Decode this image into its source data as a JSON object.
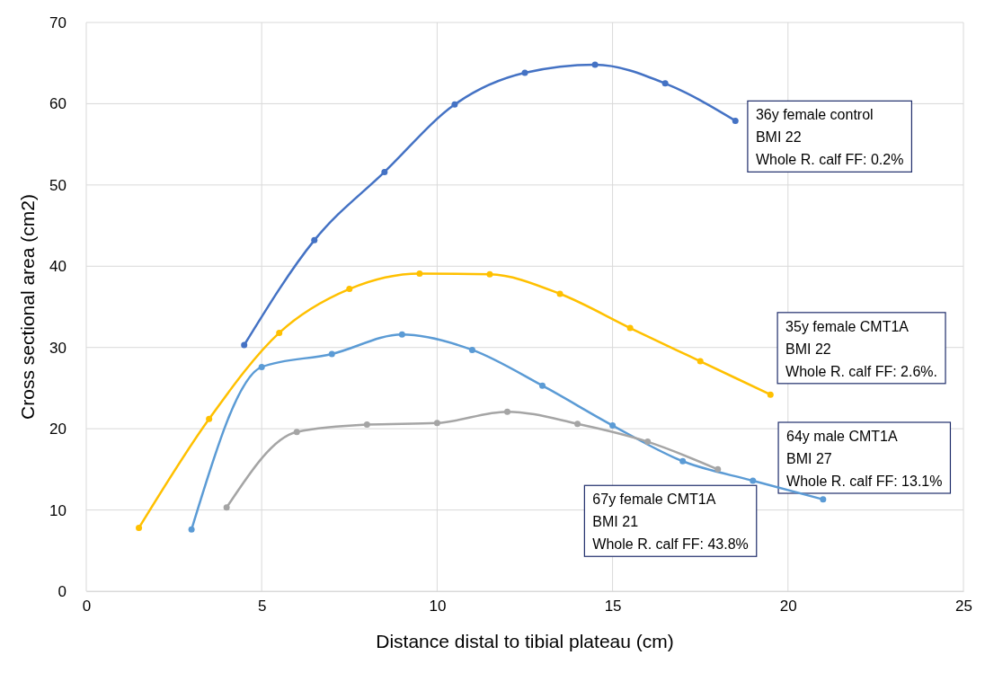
{
  "chart_data": {
    "type": "line",
    "xlabel": "Distance distal to tibial plateau (cm)",
    "ylabel": "Cross sectional area (cm2)",
    "xlim": [
      0,
      25
    ],
    "xticks": [
      0,
      5,
      10,
      15,
      20,
      25
    ],
    "ylim": [
      0,
      70
    ],
    "yticks": [
      0,
      10,
      20,
      30,
      40,
      50,
      60,
      70
    ],
    "grid": true,
    "marker": "circle",
    "series": [
      {
        "color": "#4472c4",
        "x": [
          4.5,
          6.5,
          8.5,
          10.5,
          12.5,
          14.5,
          16.5,
          18.5
        ],
        "values": [
          30.3,
          43.2,
          51.6,
          59.9,
          63.8,
          64.8,
          62.5,
          57.9
        ]
      },
      {
        "color": "#ffc000",
        "x": [
          1.5,
          3.5,
          5.5,
          7.5,
          9.5,
          11.5,
          13.5,
          15.5,
          17.5,
          19.5
        ],
        "values": [
          7.8,
          21.2,
          31.8,
          37.2,
          39.1,
          39.0,
          36.6,
          32.4,
          28.3,
          24.2
        ]
      },
      {
        "color": "#5b9bd5",
        "x": [
          3,
          5,
          7,
          9,
          11,
          13,
          15,
          17,
          19,
          21
        ],
        "values": [
          7.6,
          27.6,
          29.2,
          31.6,
          29.7,
          25.3,
          20.4,
          16.0,
          13.6,
          11.3
        ]
      },
      {
        "color": "#a5a5a5",
        "x": [
          4,
          6,
          8,
          10,
          12,
          14,
          16,
          18
        ],
        "values": [
          10.3,
          19.6,
          20.5,
          20.7,
          22.1,
          20.6,
          18.4,
          15.0
        ]
      }
    ],
    "annotations": [
      "36y female control\nBMI 22\nWhole R. calf FF: 0.2%",
      "35y female CMT1A\nBMI 22\nWhole R. calf FF: 2.6%.",
      "64y male CMT1A\nBMI 27\nWhole R. calf FF: 13.1%",
      "67y female CMT1A\nBMI 21\nWhole R. calf FF: 43.8%"
    ]
  }
}
